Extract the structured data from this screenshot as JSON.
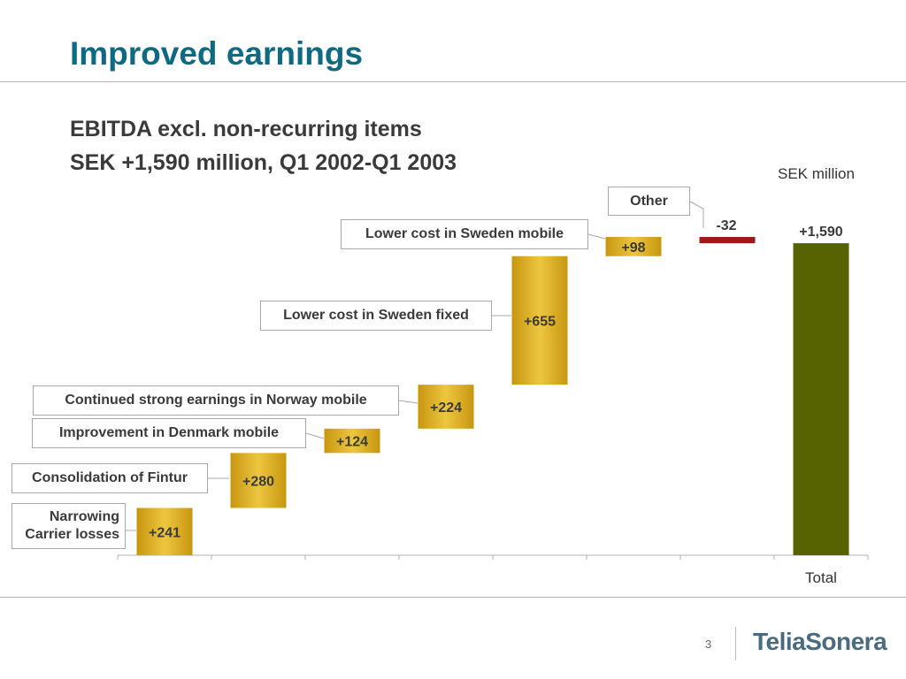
{
  "title": "Improved earnings",
  "subtitle_line1": "EBITDA excl. non-recurring items",
  "subtitle_line2": "SEK +1,590 million, Q1 2002-Q1 2003",
  "unit_label": "SEK million",
  "page_number": "3",
  "logo_text": "TeliaSonera",
  "colors": {
    "title": "#0e6a82",
    "increase": "#d9a81c",
    "decrease": "#a01818",
    "total": "#566300",
    "rule": "#b5b5b5"
  },
  "chart_data": {
    "type": "bar",
    "subtype": "waterfall",
    "categories": [
      "Narrowing Carrier losses",
      "Consolidation of Fintur",
      "Improvement in Denmark mobile",
      "Continued strong earnings in Norway mobile",
      "Lower cost in Sweden fixed",
      "Lower cost in Sweden mobile",
      "Other",
      "Total"
    ],
    "values": [
      241,
      280,
      124,
      224,
      655,
      98,
      -32,
      1590
    ],
    "value_labels": [
      "+241",
      "+280",
      "+124",
      "+224",
      "+655",
      "+98",
      "-32",
      "+1,590"
    ],
    "is_total": [
      false,
      false,
      false,
      false,
      false,
      false,
      false,
      true
    ],
    "x_tick_labels": [
      "",
      "",
      "",
      "",
      "",
      "",
      "",
      "Total"
    ],
    "title": "EBITDA excl. non-recurring items",
    "xlabel": "",
    "ylabel": "SEK million",
    "ylim": [
      0,
      1622
    ],
    "grid": false,
    "legend": "none"
  },
  "callouts": {
    "narrowing_carrier": "Narrowing\nCarrier losses",
    "fintur": "Consolidation of Fintur",
    "denmark": "Improvement in Denmark mobile",
    "norway": "Continued strong earnings in Norway mobile",
    "sweden_fixed": "Lower cost in Sweden fixed",
    "sweden_mobile": "Lower cost in Sweden mobile",
    "other": "Other"
  }
}
